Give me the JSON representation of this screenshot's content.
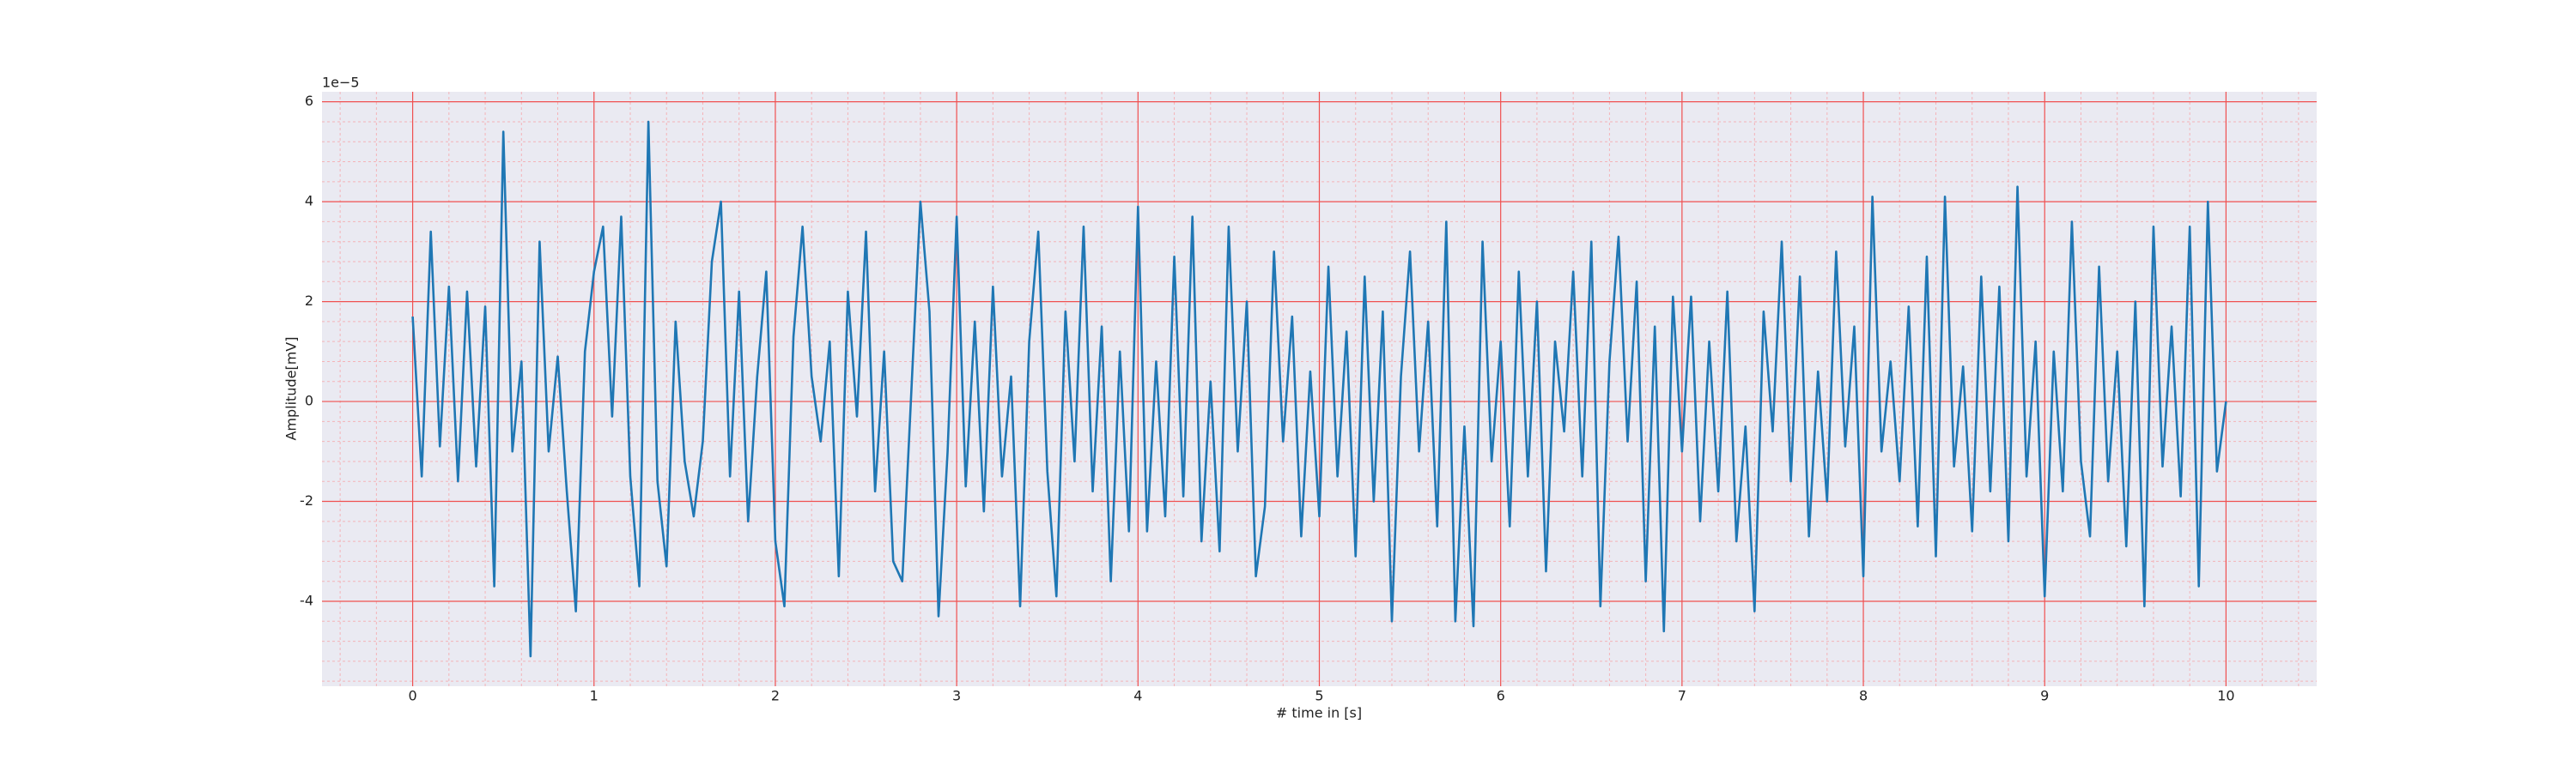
{
  "chart_data": {
    "type": "line",
    "xlabel": "# time in [s]",
    "ylabel": "Amplitude[mV]",
    "y_offset_text": "1e−5",
    "xlim": [
      -0.5,
      10.5
    ],
    "ylim": [
      -5.7,
      6.2
    ],
    "xticks": [
      0,
      1,
      2,
      3,
      4,
      5,
      6,
      7,
      8,
      9,
      10
    ],
    "yticks": [
      -4,
      -2,
      0,
      2,
      4,
      6
    ],
    "grid": true,
    "minor_grid": true,
    "x": [
      0,
      0.05,
      0.1,
      0.15,
      0.2,
      0.25,
      0.3,
      0.35,
      0.4,
      0.45,
      0.5,
      0.55,
      0.6,
      0.65,
      0.7,
      0.75,
      0.8,
      0.85,
      0.9,
      0.95,
      1,
      1.05,
      1.1,
      1.15,
      1.2,
      1.25,
      1.3,
      1.35,
      1.4,
      1.45,
      1.5,
      1.55,
      1.6,
      1.65,
      1.7,
      1.75,
      1.8,
      1.85,
      1.9,
      1.95,
      2,
      2.05,
      2.1,
      2.15,
      2.2,
      2.25,
      2.3,
      2.35,
      2.4,
      2.45,
      2.5,
      2.55,
      2.6,
      2.65,
      2.7,
      2.75,
      2.8,
      2.85,
      2.9,
      2.95,
      3,
      3.05,
      3.1,
      3.15,
      3.2,
      3.25,
      3.3,
      3.35,
      3.4,
      3.45,
      3.5,
      3.55,
      3.6,
      3.65,
      3.7,
      3.75,
      3.8,
      3.85,
      3.9,
      3.95,
      4,
      4.05,
      4.1,
      4.15,
      4.2,
      4.25,
      4.3,
      4.35,
      4.4,
      4.45,
      4.5,
      4.55,
      4.6,
      4.65,
      4.7,
      4.75,
      4.8,
      4.85,
      4.9,
      4.95,
      5,
      5.05,
      5.1,
      5.15,
      5.2,
      5.25,
      5.3,
      5.35,
      5.4,
      5.45,
      5.5,
      5.55,
      5.6,
      5.65,
      5.7,
      5.75,
      5.8,
      5.85,
      5.9,
      5.95,
      6,
      6.05,
      6.1,
      6.15,
      6.2,
      6.25,
      6.3,
      6.35,
      6.4,
      6.45,
      6.5,
      6.55,
      6.6,
      6.65,
      6.7,
      6.75,
      6.8,
      6.85,
      6.9,
      6.95,
      7,
      7.05,
      7.1,
      7.15,
      7.2,
      7.25,
      7.3,
      7.35,
      7.4,
      7.45,
      7.5,
      7.55,
      7.6,
      7.65,
      7.7,
      7.75,
      7.8,
      7.85,
      7.9,
      7.95,
      8,
      8.05,
      8.1,
      8.15,
      8.2,
      8.25,
      8.3,
      8.35,
      8.4,
      8.45,
      8.5,
      8.55,
      8.6,
      8.65,
      8.7,
      8.75,
      8.8,
      8.85,
      8.9,
      8.95,
      9,
      9.05,
      9.1,
      9.15,
      9.2,
      9.25,
      9.3,
      9.35,
      9.4,
      9.45,
      9.5,
      9.55,
      9.6,
      9.65,
      9.7,
      9.75,
      9.8,
      9.85,
      9.9,
      9.95,
      10
    ],
    "series": [
      {
        "color": "#1f77b4",
        "values": [
          1.7,
          -1.5,
          3.4,
          -0.9,
          2.3,
          -1.6,
          2.2,
          -1.3,
          1.9,
          -3.7,
          5.4,
          -1.0,
          0.8,
          -5.1,
          3.2,
          -1.0,
          0.9,
          -1.8,
          -4.2,
          1.0,
          2.6,
          3.5,
          -0.3,
          3.7,
          -1.5,
          -3.7,
          5.6,
          -1.6,
          -3.3,
          1.6,
          -1.2,
          -2.3,
          -0.8,
          2.8,
          4.0,
          -1.5,
          2.2,
          -2.4,
          0.5,
          2.6,
          -2.8,
          -4.1,
          1.3,
          3.5,
          0.5,
          -0.8,
          1.2,
          -3.5,
          2.2,
          -0.3,
          3.4,
          -1.8,
          1.0,
          -3.2,
          -3.6,
          0.2,
          4.0,
          1.8,
          -4.3,
          -1.0,
          3.7,
          -1.7,
          1.6,
          -2.2,
          2.3,
          -1.5,
          0.5,
          -4.1,
          1.2,
          3.4,
          -1.4,
          -3.9,
          1.8,
          -1.2,
          3.5,
          -1.8,
          1.5,
          -3.6,
          1.0,
          -2.6,
          3.9,
          -2.6,
          0.8,
          -2.3,
          2.9,
          -1.9,
          3.7,
          -2.8,
          0.4,
          -3.0,
          3.5,
          -1.0,
          2.0,
          -3.5,
          -2.1,
          3.0,
          -0.8,
          1.7,
          -2.7,
          0.6,
          -2.3,
          2.7,
          -1.5,
          1.4,
          -3.1,
          2.5,
          -2.0,
          1.8,
          -4.4,
          0.5,
          3.0,
          -1.0,
          1.6,
          -2.5,
          3.6,
          -4.4,
          -0.5,
          -4.5,
          3.2,
          -1.2,
          1.2,
          -2.5,
          2.6,
          -1.5,
          2.0,
          -3.4,
          1.2,
          -0.6,
          2.6,
          -1.5,
          3.2,
          -4.1,
          0.8,
          3.3,
          -0.8,
          2.4,
          -3.6,
          1.5,
          -4.6,
          2.1,
          -1.0,
          2.1,
          -2.4,
          1.2,
          -1.8,
          2.2,
          -2.8,
          -0.5,
          -4.2,
          1.8,
          -0.6,
          3.2,
          -1.6,
          2.5,
          -2.7,
          0.6,
          -2.0,
          3.0,
          -0.9,
          1.5,
          -3.5,
          4.1,
          -1.0,
          0.8,
          -1.6,
          1.9,
          -2.5,
          2.9,
          -3.1,
          4.1,
          -1.3,
          0.7,
          -2.6,
          2.5,
          -1.8,
          2.3,
          -2.8,
          4.3,
          -1.5,
          1.2,
          -3.9,
          1.0,
          -1.8,
          3.6,
          -1.2,
          -2.7,
          2.7,
          -1.6,
          1.0,
          -2.9,
          2.0,
          -4.1,
          3.5,
          -1.3,
          1.5,
          -1.9,
          3.5,
          -3.7,
          4.0,
          -1.4,
          0.0
        ]
      }
    ]
  }
}
